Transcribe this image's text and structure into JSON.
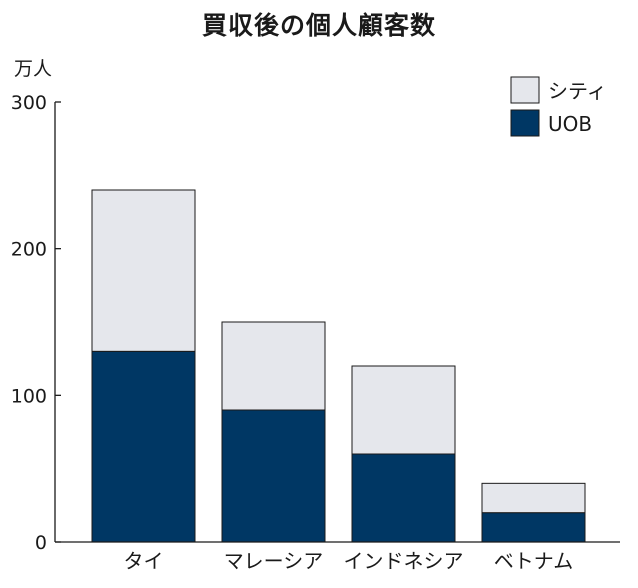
{
  "chart_data": {
    "type": "bar",
    "stacked": true,
    "title": "買収後の個人顧客数",
    "ylabel": "万人",
    "ylim": [
      0,
      300
    ],
    "yticks": [
      "0",
      "100",
      "200",
      "300"
    ],
    "categories": [
      "タイ",
      "マレーシア",
      "インドネシア",
      "ベトナム"
    ],
    "series": [
      {
        "name": "UOB",
        "values": [
          130,
          90,
          60,
          20
        ],
        "color": "#003764"
      },
      {
        "name": "シティ",
        "values": [
          110,
          60,
          60,
          20
        ],
        "color": "#e5e7ec"
      }
    ],
    "legend": "top-right",
    "grid": false
  }
}
